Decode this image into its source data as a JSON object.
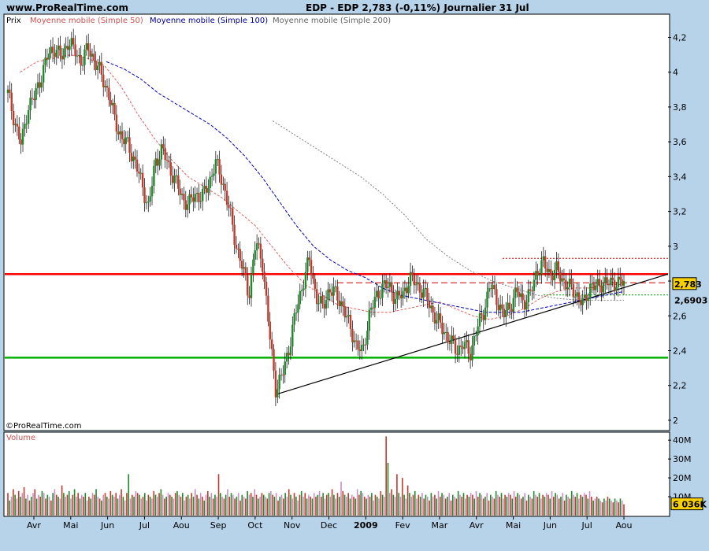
{
  "header": {
    "source": "www.ProRealTime.com",
    "title": "EDP - EDP    2,783 (-0,11%)    Journalier  31 Jul"
  },
  "legend": {
    "price": "Prix",
    "ma50": "Moyenne mobile (Simple 50)",
    "ma100": "Moyenne mobile (Simple 100)",
    "ma200": "Moyenne mobile (Simple 200)"
  },
  "watermark": "©ProRealTime.com",
  "volume_label": "Volume",
  "chart_data": [
    {
      "type": "candlestick",
      "title": "EDP - EDP",
      "x_labels": [
        "Avr",
        "Mai",
        "Jun",
        "Jul",
        "Aou",
        "Sep",
        "Oct",
        "Nov",
        "Dec",
        "2009",
        "Fev",
        "Mar",
        "Avr",
        "Mai",
        "Jun",
        "Jul",
        "Aou"
      ],
      "y_ticks": [
        "4,2",
        "4",
        "3,8",
        "3,6",
        "3,4",
        "3,2",
        "3",
        "2,8",
        "2,6",
        "2,4",
        "2,2",
        "2"
      ],
      "ylim": [
        1.95,
        4.27
      ],
      "last_value_label": "2,783",
      "secondary_value_label": "2,6903",
      "series": [
        {
          "name": "Prix",
          "values": [
            3.88,
            3.72,
            3.58,
            3.8,
            3.86,
            3.98,
            4.1,
            4.14,
            4.08,
            4.18,
            4.12,
            4.06,
            4.14,
            4.06,
            3.98,
            3.88,
            3.72,
            3.62,
            3.58,
            3.48,
            3.36,
            3.22,
            3.48,
            3.56,
            3.46,
            3.38,
            3.28,
            3.24,
            3.3,
            3.28,
            3.36,
            3.48,
            3.38,
            3.22,
            3.02,
            2.88,
            2.72,
            3.02,
            2.92,
            2.52,
            2.18,
            2.26,
            2.42,
            2.62,
            2.78,
            2.92,
            2.72,
            2.64,
            2.76,
            2.72,
            2.66,
            2.54,
            2.44,
            2.38,
            2.62,
            2.7,
            2.78,
            2.76,
            2.7,
            2.72,
            2.82,
            2.78,
            2.74,
            2.66,
            2.58,
            2.52,
            2.46,
            2.4,
            2.44,
            2.38,
            2.52,
            2.62,
            2.78,
            2.7,
            2.6,
            2.66,
            2.74,
            2.68,
            2.72,
            2.86,
            2.9,
            2.84,
            2.86,
            2.8,
            2.76,
            2.72,
            2.66,
            2.78,
            2.76,
            2.8,
            2.78,
            2.8,
            2.783
          ]
        },
        {
          "name": "Moyenne mobile (Simple 50)",
          "values": [
            4.0,
            4.06,
            4.08,
            4.1,
            4.08,
            4.04,
            3.92,
            3.76,
            3.62,
            3.5,
            3.4,
            3.34,
            3.28,
            3.2,
            3.12,
            3.0,
            2.88,
            2.78,
            2.72,
            2.66,
            2.64,
            2.62,
            2.62,
            2.64,
            2.66,
            2.68,
            2.64,
            2.6,
            2.58,
            2.6,
            2.64,
            2.7,
            2.74,
            2.76,
            2.76,
            2.78,
            2.78
          ]
        },
        {
          "name": "Moyenne mobile (Simple 100)",
          "values": [
            4.06,
            4.02,
            3.96,
            3.88,
            3.82,
            3.76,
            3.7,
            3.62,
            3.52,
            3.4,
            3.26,
            3.12,
            3.0,
            2.92,
            2.86,
            2.82,
            2.76,
            2.72,
            2.7,
            2.68,
            2.66,
            2.64,
            2.62,
            2.62,
            2.62,
            2.64,
            2.66,
            2.68,
            2.7,
            2.72,
            2.74
          ]
        },
        {
          "name": "Moyenne mobile (Simple 200)",
          "values": [
            3.72,
            3.64,
            3.56,
            3.48,
            3.4,
            3.3,
            3.18,
            3.04,
            2.94,
            2.86,
            2.8,
            2.76,
            2.72,
            2.7,
            2.69,
            2.69,
            2.69
          ]
        }
      ],
      "horizontal_levels": [
        {
          "value": 2.84,
          "color": "#ff0000"
        },
        {
          "value": 2.36,
          "color": "#00b000"
        },
        {
          "value": 2.79,
          "color": "#cc0000",
          "style": "dashed"
        },
        {
          "value": 2.93,
          "color": "#cc0000",
          "style": "dotted"
        },
        {
          "value": 2.72,
          "color": "#00a000",
          "style": "dotted"
        }
      ],
      "trendline": {
        "from": [
          2.16,
          0.0
        ],
        "to": [
          2.84,
          1.0
        ]
      }
    },
    {
      "type": "bar",
      "title": "Volume",
      "y_ticks": [
        "40M",
        "30M",
        "20M",
        "10M"
      ],
      "ylim": [
        0,
        43
      ],
      "last_value_label": "6 036K",
      "values_millions": [
        12,
        8,
        10,
        14,
        11,
        9,
        13,
        10,
        12,
        15,
        9,
        11,
        8,
        10,
        12,
        14,
        9,
        11,
        10,
        13,
        12,
        9,
        11,
        10,
        8,
        12,
        14,
        11,
        10,
        9,
        16,
        12,
        10,
        11,
        13,
        9,
        11,
        14,
        10,
        12,
        9,
        11,
        10,
        12,
        8,
        10,
        9,
        12,
        11,
        14,
        10,
        9,
        8,
        11,
        12,
        10,
        9,
        13,
        11,
        10,
        12,
        9,
        11,
        14,
        10,
        8,
        12,
        22,
        9,
        11,
        10,
        13,
        12,
        11,
        9,
        10,
        12,
        8,
        11,
        10,
        9,
        13,
        11,
        10,
        12,
        14,
        11,
        9,
        10,
        12,
        11,
        10,
        9,
        12,
        13,
        11,
        10,
        12,
        8,
        10,
        11,
        9,
        12,
        10,
        14,
        11,
        9,
        12,
        10,
        8,
        11,
        13,
        10,
        12,
        9,
        11,
        10,
        22,
        12,
        10,
        9,
        11,
        14,
        10,
        12,
        11,
        9,
        10,
        12,
        8,
        11,
        10,
        9,
        13,
        11,
        12,
        10,
        14,
        11,
        9,
        10,
        12,
        11,
        10,
        9,
        12,
        13,
        11,
        10,
        12,
        8,
        10,
        11,
        9,
        12,
        10,
        14,
        11,
        9,
        12,
        10,
        8,
        11,
        13,
        10,
        12,
        9,
        11,
        10,
        9,
        12,
        10,
        11,
        13,
        10,
        12,
        9,
        11,
        12,
        10,
        14,
        11,
        9,
        12,
        10,
        18,
        13,
        11,
        10,
        12,
        9,
        11,
        10,
        9,
        14,
        11,
        13,
        12,
        10,
        9,
        11,
        10,
        12,
        8,
        11,
        10,
        9,
        13,
        11,
        10,
        42,
        28,
        12,
        14,
        11,
        10,
        22,
        12,
        10,
        20,
        11,
        9,
        16,
        12,
        10,
        11,
        13,
        9,
        11,
        10,
        12,
        9,
        11,
        10,
        8,
        12,
        10,
        11,
        9,
        13,
        10,
        12,
        11,
        9,
        10,
        12,
        8,
        11,
        10,
        9,
        13,
        11,
        10,
        12,
        9,
        11,
        10,
        12,
        11,
        9,
        13,
        10,
        12,
        11,
        9,
        10,
        12,
        8,
        11,
        10,
        9,
        13,
        11,
        10,
        12,
        9,
        11,
        10,
        12,
        11,
        9,
        13,
        10,
        12,
        11,
        9,
        10,
        12,
        8,
        11,
        10,
        9,
        13,
        11,
        10,
        12,
        9,
        11,
        10,
        12,
        11,
        9,
        13,
        10,
        12,
        11,
        9,
        10,
        12,
        8,
        11,
        10,
        9,
        13,
        11,
        10,
        12,
        9,
        11,
        10,
        12,
        11,
        9,
        13,
        10,
        8,
        9,
        10,
        9,
        8,
        7,
        9,
        8,
        10,
        9,
        8,
        7,
        9,
        8,
        7,
        9,
        8,
        6
      ]
    }
  ],
  "colors": {
    "background": "#b7d3e9",
    "plot_bg": "#ffffff",
    "up": "#1e8a2a",
    "down": "#c23a2a",
    "ma50": "#e06060",
    "ma100": "#0000c0",
    "ma200": "#808080"
  }
}
